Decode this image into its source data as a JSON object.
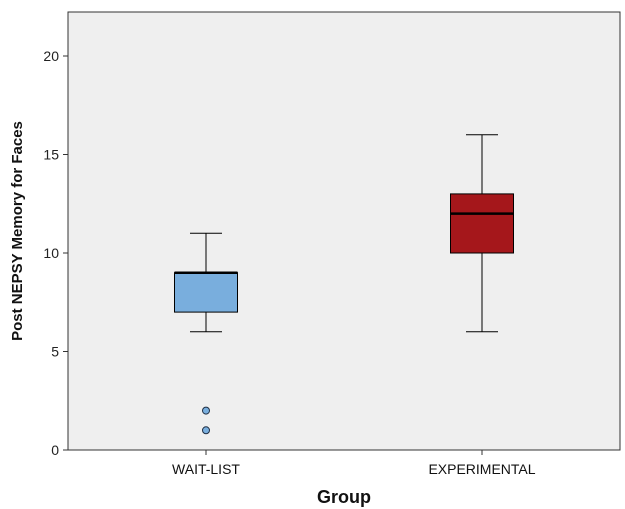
{
  "chart_data": {
    "type": "box",
    "xlabel": "Group",
    "ylabel": "Post NEPSY Memory for Faces",
    "ylim": [
      0,
      22
    ],
    "yticks": [
      0,
      5,
      10,
      15,
      20
    ],
    "grid": false,
    "categories": [
      "WAIT-LIST",
      "EXPERIMENTAL"
    ],
    "boxes": [
      {
        "category": "WAIT-LIST",
        "color": "#79aedd",
        "min": 6,
        "q1": 7,
        "median": 9,
        "q3": 9,
        "max": 11,
        "outliers": [
          2,
          1
        ]
      },
      {
        "category": "EXPERIMENTAL",
        "color": "#a5171b",
        "min": 6,
        "q1": 10,
        "median": 12,
        "q3": 13,
        "max": 16,
        "outliers": []
      }
    ]
  }
}
